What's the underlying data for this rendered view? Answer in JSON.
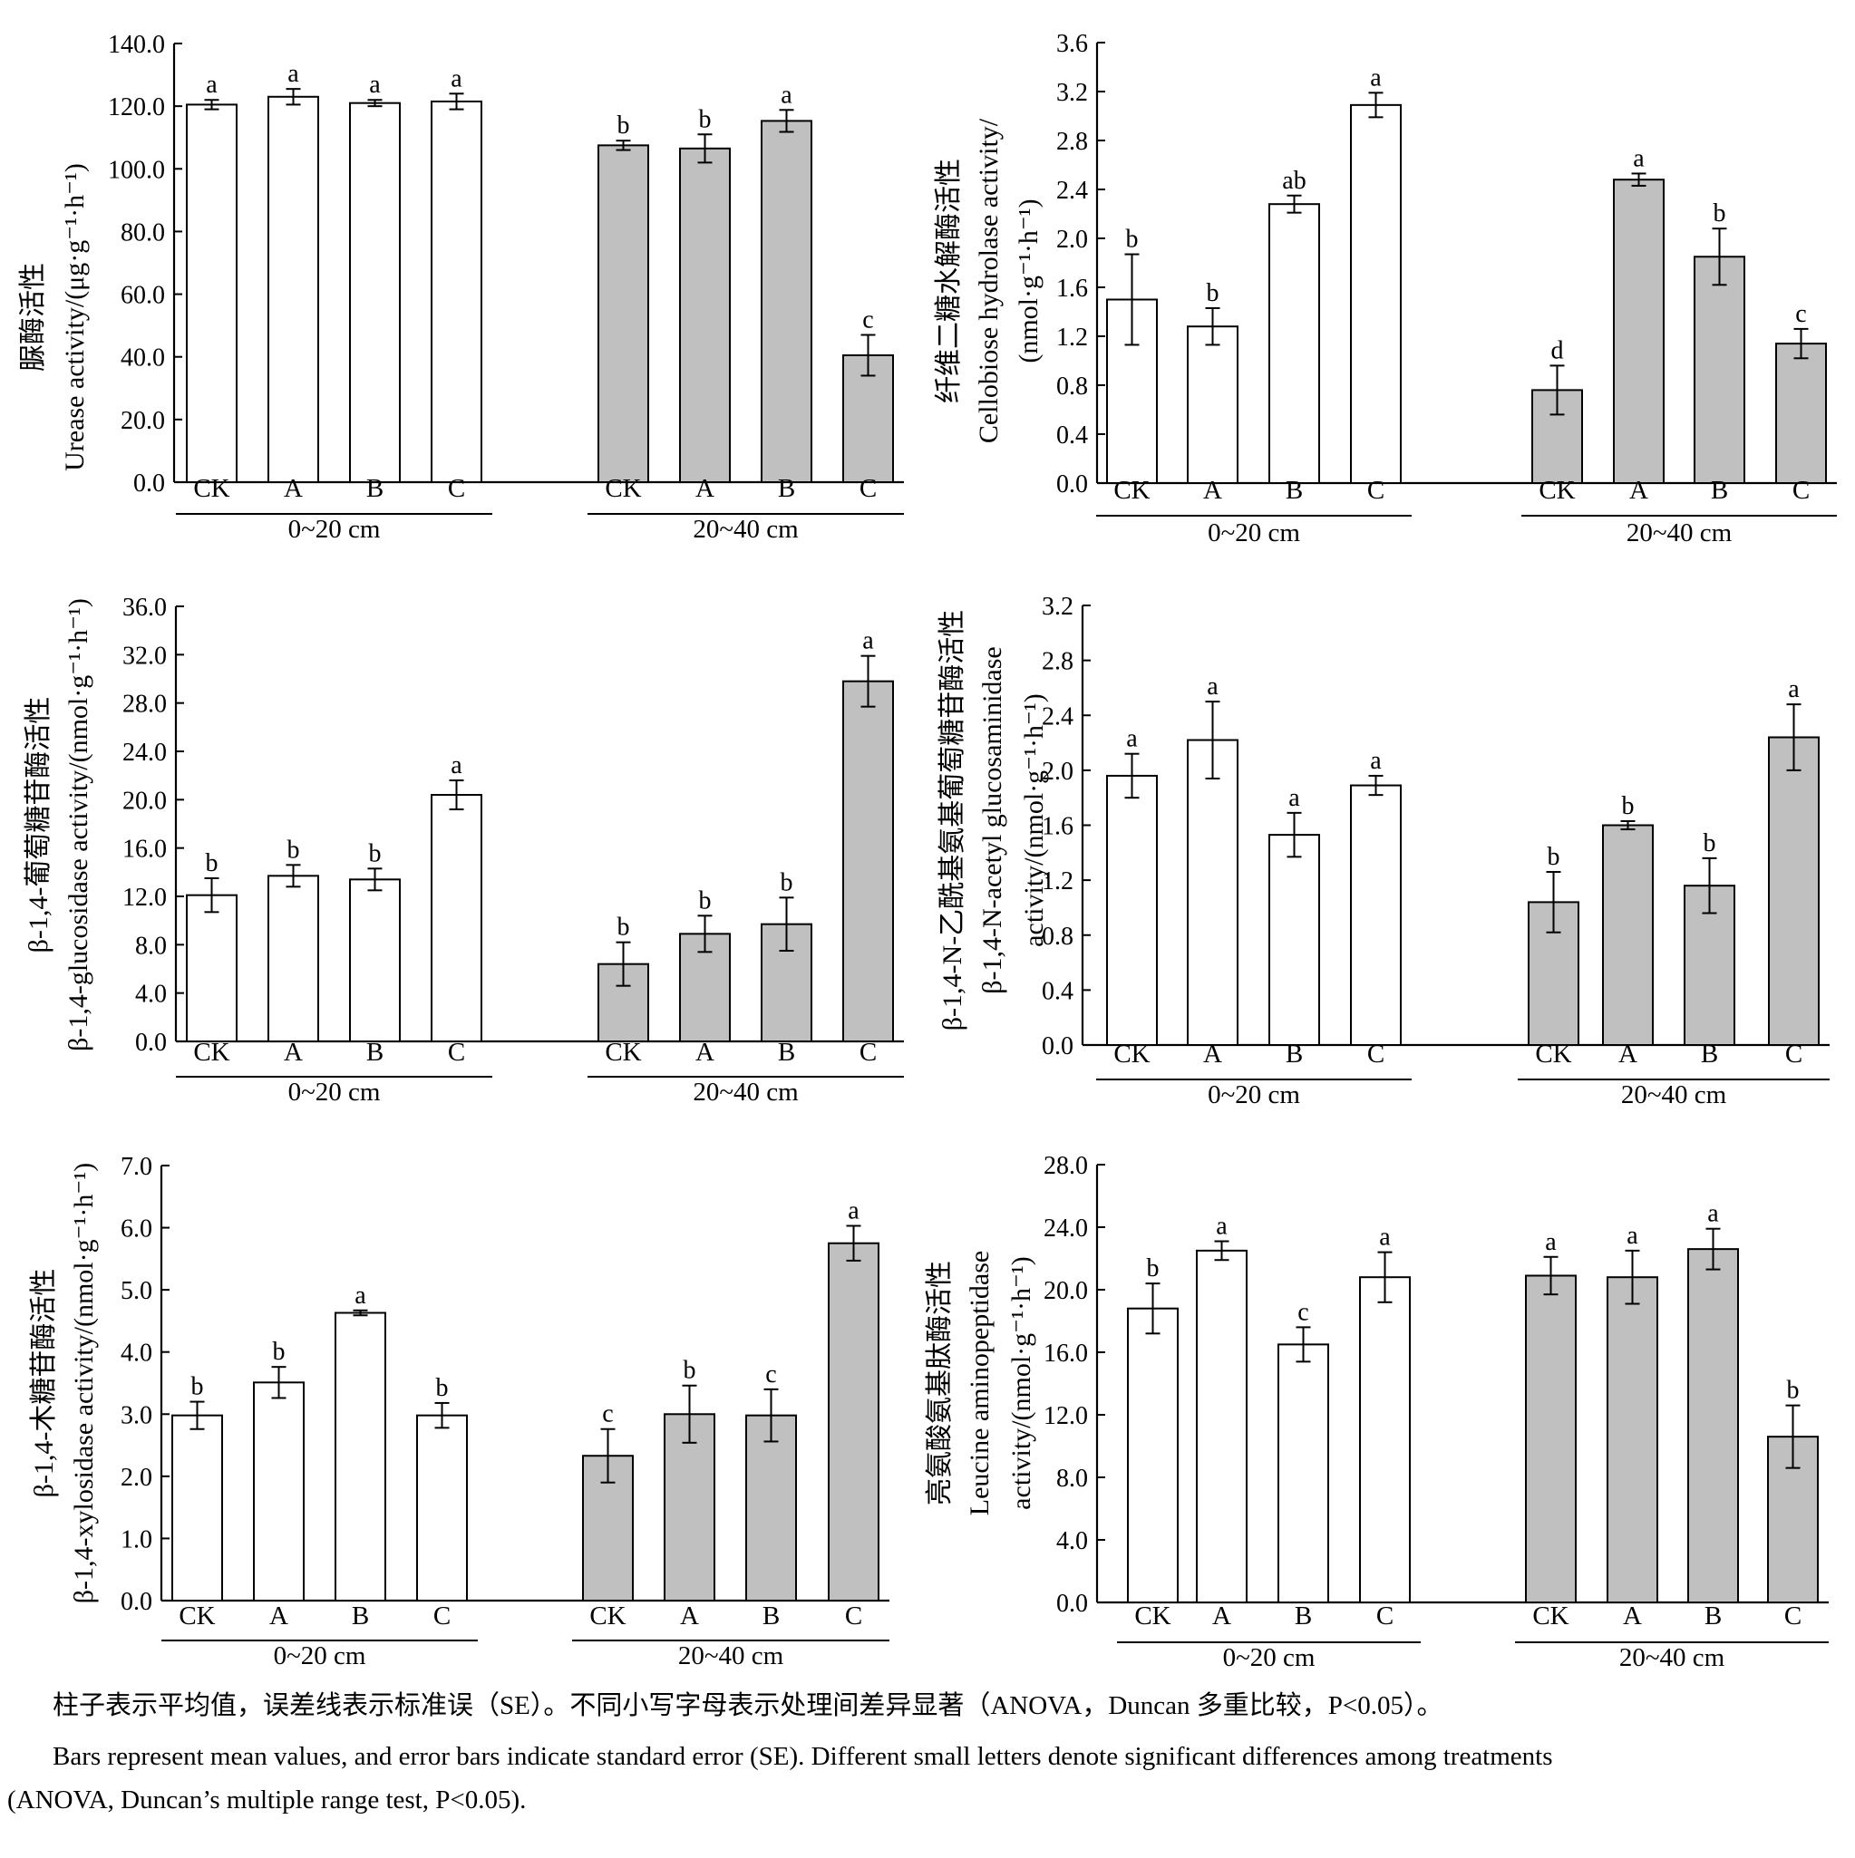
{
  "chart_data": [
    {
      "type": "bar",
      "y_label_lines": [
        "脲酶活性",
        "Urease activity/(μg·g⁻¹·h⁻¹)"
      ],
      "ylim": [
        0,
        140
      ],
      "ytick_labels": [
        "0.0",
        "20.0",
        "40.0",
        "60.0",
        "80.0",
        "100.0",
        "120.0",
        "140.0"
      ],
      "groups": [
        {
          "label": "0~20 cm",
          "categories": [
            "CK",
            "A",
            "B",
            "C"
          ],
          "values": [
            120.5,
            123.0,
            121.0,
            121.5
          ],
          "errors": [
            1.5,
            2.5,
            1.0,
            2.5
          ],
          "letters": [
            "a",
            "a",
            "a",
            "a"
          ]
        },
        {
          "label": "20~40 cm",
          "categories": [
            "CK",
            "A",
            "B",
            "C"
          ],
          "values": [
            107.5,
            106.5,
            115.3,
            40.5
          ],
          "errors": [
            1.5,
            4.5,
            3.5,
            6.5
          ],
          "letters": [
            "b",
            "b",
            "a",
            "c"
          ]
        }
      ]
    },
    {
      "type": "bar",
      "y_label_lines": [
        "纤维二糖水解酶活性",
        "Cellobiose hydrolase activity/",
        "(nmol·g⁻¹·h⁻¹)"
      ],
      "ylim": [
        0,
        3.6
      ],
      "ytick_labels": [
        "0.0",
        "0.4",
        "0.8",
        "1.2",
        "1.6",
        "2.0",
        "2.4",
        "2.8",
        "3.2",
        "3.6"
      ],
      "groups": [
        {
          "label": "0~20 cm",
          "categories": [
            "CK",
            "A",
            "B",
            "C"
          ],
          "values": [
            1.5,
            1.28,
            2.28,
            3.09
          ],
          "errors": [
            0.37,
            0.15,
            0.07,
            0.1
          ],
          "letters": [
            "b",
            "b",
            "ab",
            "a"
          ]
        },
        {
          "label": "20~40 cm",
          "categories": [
            "CK",
            "A",
            "B",
            "C"
          ],
          "values": [
            0.76,
            2.48,
            1.85,
            1.14
          ],
          "errors": [
            0.2,
            0.05,
            0.23,
            0.12
          ],
          "letters": [
            "d",
            "a",
            "b",
            "c"
          ]
        }
      ]
    },
    {
      "type": "bar",
      "y_label_lines": [
        "β-1,4-葡萄糖苷酶活性",
        "β-1,4-glucosidase activity/(nmol·g⁻¹·h⁻¹)"
      ],
      "ylim": [
        0,
        36
      ],
      "ytick_labels": [
        "0.0",
        "4.0",
        "8.0",
        "12.0",
        "16.0",
        "20.0",
        "24.0",
        "28.0",
        "32.0",
        "36.0"
      ],
      "groups": [
        {
          "label": "0~20 cm",
          "categories": [
            "CK",
            "A",
            "B",
            "C"
          ],
          "values": [
            12.1,
            13.7,
            13.4,
            20.4
          ],
          "errors": [
            1.4,
            0.9,
            0.9,
            1.2
          ],
          "letters": [
            "b",
            "b",
            "b",
            "a"
          ]
        },
        {
          "label": "20~40 cm",
          "categories": [
            "CK",
            "A",
            "B",
            "C"
          ],
          "values": [
            6.4,
            8.9,
            9.7,
            29.8
          ],
          "errors": [
            1.8,
            1.5,
            2.2,
            2.1
          ],
          "letters": [
            "b",
            "b",
            "b",
            "a"
          ]
        }
      ]
    },
    {
      "type": "bar",
      "y_label_lines": [
        "β-1,4-N-乙酰基氨基葡萄糖苷酶活性",
        "β-1,4-N-acetyl glucosaminidase",
        "activity/(nmol·g⁻¹·h⁻¹)"
      ],
      "ylim": [
        0,
        3.2
      ],
      "ytick_labels": [
        "0.0",
        "0.4",
        "0.8",
        "1.2",
        "1.6",
        "2.0",
        "2.4",
        "2.8",
        "3.2"
      ],
      "groups": [
        {
          "label": "0~20 cm",
          "categories": [
            "CK",
            "A",
            "B",
            "C"
          ],
          "values": [
            1.96,
            2.22,
            1.53,
            1.89
          ],
          "errors": [
            0.16,
            0.28,
            0.16,
            0.07
          ],
          "letters": [
            "a",
            "a",
            "a",
            "a"
          ]
        },
        {
          "label": "20~40 cm",
          "categories": [
            "CK",
            "A",
            "B",
            "C"
          ],
          "values": [
            1.04,
            1.6,
            1.16,
            2.24
          ],
          "errors": [
            0.22,
            0.03,
            0.2,
            0.24
          ],
          "letters": [
            "b",
            "b",
            "b",
            "a"
          ]
        }
      ]
    },
    {
      "type": "bar",
      "y_label_lines": [
        "β-1,4-木糖苷酶活性",
        "β-1,4-xylosidase activity/(nmol·g⁻¹·h⁻¹)"
      ],
      "ylim": [
        0,
        7
      ],
      "ytick_labels": [
        "0.0",
        "1.0",
        "2.0",
        "3.0",
        "4.0",
        "5.0",
        "6.0",
        "7.0"
      ],
      "groups": [
        {
          "label": "0~20 cm",
          "categories": [
            "CK",
            "A",
            "B",
            "C"
          ],
          "values": [
            2.98,
            3.51,
            4.63,
            2.98
          ],
          "errors": [
            0.22,
            0.25,
            0.04,
            0.2
          ],
          "letters": [
            "b",
            "b",
            "a",
            "b"
          ]
        },
        {
          "label": "20~40 cm",
          "categories": [
            "CK",
            "A",
            "B",
            "C"
          ],
          "values": [
            2.33,
            3.0,
            2.98,
            5.75
          ],
          "errors": [
            0.43,
            0.46,
            0.42,
            0.28
          ],
          "letters": [
            "c",
            "b",
            "c",
            "a"
          ]
        }
      ]
    },
    {
      "type": "bar",
      "y_label_lines": [
        "亮氨酸氨基肽酶活性",
        "Leucine aminopeptidase",
        "activity/(nmol·g⁻¹·h⁻¹)"
      ],
      "ylim": [
        0,
        28
      ],
      "ytick_labels": [
        "0.0",
        "4.0",
        "8.0",
        "12.0",
        "16.0",
        "20.0",
        "24.0",
        "28.0"
      ],
      "groups": [
        {
          "label": "0~20 cm",
          "categories": [
            "CK",
            "A",
            "B",
            "C"
          ],
          "values": [
            18.8,
            22.5,
            16.5,
            20.8
          ],
          "errors": [
            1.6,
            0.6,
            1.1,
            1.6
          ],
          "letters": [
            "b",
            "a",
            "c",
            "a"
          ]
        },
        {
          "label": "20~40 cm",
          "categories": [
            "CK",
            "A",
            "B",
            "C"
          ],
          "values": [
            20.9,
            20.8,
            22.6,
            10.6
          ],
          "errors": [
            1.2,
            1.7,
            1.3,
            2.0
          ],
          "letters": [
            "a",
            "a",
            "a",
            "b"
          ]
        }
      ]
    }
  ],
  "caption": {
    "cn": "柱子表示平均值，误差线表示标准误（SE）。不同小写字母表示处理间差异显著（ANOVA，Duncan 多重比较，P<0.05）。",
    "en_line1": "Bars represent mean values, and error bars indicate standard error (SE). Different small letters denote significant differences among treatments",
    "en_line2": "(ANOVA, Duncan’s multiple range test, P<0.05)."
  },
  "colors": {
    "bar_0_20": "#ffffff",
    "bar_20_40": "#c0c0c0",
    "stroke": "#000000"
  }
}
